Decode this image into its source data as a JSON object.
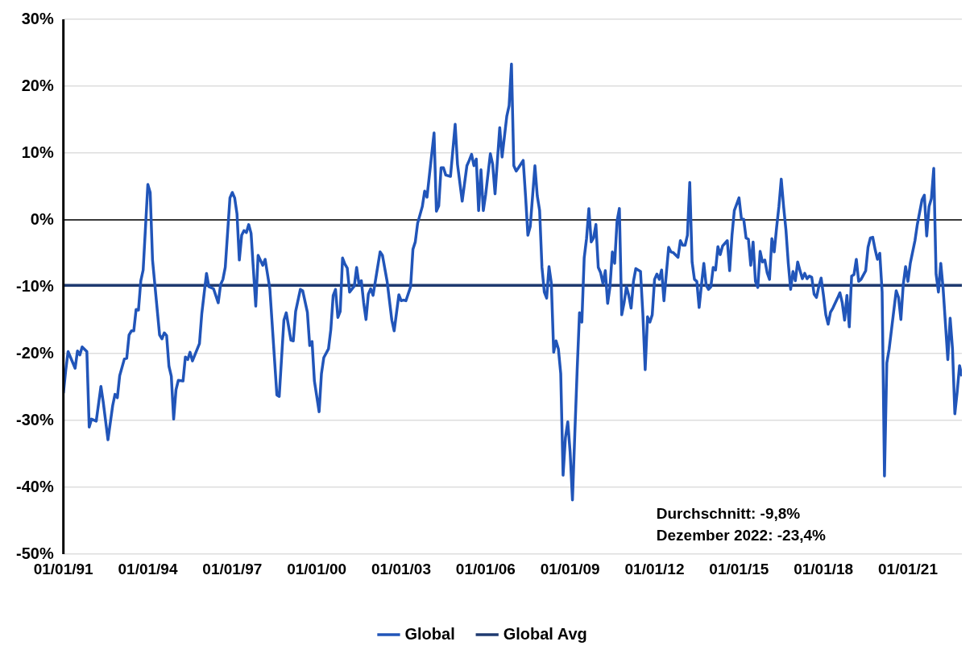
{
  "chart_data": {
    "type": "line",
    "xlim": [
      "1991-01",
      "2022-12"
    ],
    "ylim": [
      -50,
      30
    ],
    "xticks": [
      {
        "value": "1991-01-01",
        "label": "01/01/91"
      },
      {
        "value": "1994-01-01",
        "label": "01/01/94"
      },
      {
        "value": "1997-01-01",
        "label": "01/01/97"
      },
      {
        "value": "2000-01-01",
        "label": "01/01/00"
      },
      {
        "value": "2003-01-01",
        "label": "01/01/03"
      },
      {
        "value": "2006-01-01",
        "label": "01/01/06"
      },
      {
        "value": "2009-01-01",
        "label": "01/01/09"
      },
      {
        "value": "2012-01-01",
        "label": "01/01/12"
      },
      {
        "value": "2015-01-01",
        "label": "01/01/15"
      },
      {
        "value": "2018-01-01",
        "label": "01/01/18"
      },
      {
        "value": "2021-01-01",
        "label": "01/01/21"
      }
    ],
    "yticks": [
      {
        "value": 30,
        "label": "30%"
      },
      {
        "value": 20,
        "label": "20%"
      },
      {
        "value": 10,
        "label": "10%"
      },
      {
        "value": 0,
        "label": "0%"
      },
      {
        "value": -10,
        "label": "-10%"
      },
      {
        "value": -20,
        "label": "-20%"
      },
      {
        "value": -30,
        "label": "-30%"
      },
      {
        "value": -40,
        "label": "-40%"
      },
      {
        "value": -50,
        "label": "-50%"
      }
    ],
    "grid": "y",
    "legend": "bottom",
    "marker": "none",
    "line_style": "solid",
    "ref_lines": [
      {
        "axis": "y",
        "value": 0,
        "color": "#000000"
      }
    ],
    "annotations": [
      "Durchschnitt: -9,8%",
      "Dezember 2022: -23,4%"
    ],
    "series": [
      {
        "name": "Global",
        "type": "line",
        "color": "#2155b9",
        "x": [
          "1991-01",
          "1991-02",
          "1991-03",
          "1991-06",
          "1991-07",
          "1991-08",
          "1991-09",
          "1991-11",
          "1991-12",
          "1992-01",
          "1992-03",
          "1992-05",
          "1992-06",
          "1992-08",
          "1992-10",
          "1992-11",
          "1992-12",
          "1993-01",
          "1993-03",
          "1993-04",
          "1993-05",
          "1993-06",
          "1993-07",
          "1993-08",
          "1993-09",
          "1993-10",
          "1993-11",
          "1994-01",
          "1994-02",
          "1994-03",
          "1994-06",
          "1994-07",
          "1994-08",
          "1994-09",
          "1994-10",
          "1994-11",
          "1994-12",
          "1995-01",
          "1995-02",
          "1995-04",
          "1995-05",
          "1995-06",
          "1995-07",
          "1995-08",
          "1995-11",
          "1995-12",
          "1996-02",
          "1996-03",
          "1996-05",
          "1996-07",
          "1996-08",
          "1996-09",
          "1996-10",
          "1996-12",
          "1997-01",
          "1997-02",
          "1997-03",
          "1997-04",
          "1997-05",
          "1997-06",
          "1997-07",
          "1997-08",
          "1997-09",
          "1997-11",
          "1997-12",
          "1998-02",
          "1998-03",
          "1998-05",
          "1998-08",
          "1998-09",
          "1998-11",
          "1998-12",
          "1999-02",
          "1999-03",
          "1999-04",
          "1999-06",
          "1999-07",
          "1999-09",
          "1999-10",
          "1999-11",
          "1999-12",
          "2000-02",
          "2000-03",
          "2000-04",
          "2000-06",
          "2000-07",
          "2000-08",
          "2000-09",
          "2000-10",
          "2000-11",
          "2000-12",
          "2001-01",
          "2001-02",
          "2001-03",
          "2001-05",
          "2001-06",
          "2001-07",
          "2001-08",
          "2001-09",
          "2001-10",
          "2001-11",
          "2001-12",
          "2002-01",
          "2002-04",
          "2002-05",
          "2002-07",
          "2002-09",
          "2002-10",
          "2002-12",
          "2003-01",
          "2003-02",
          "2003-03",
          "2003-05",
          "2003-06",
          "2003-07",
          "2003-08",
          "2003-10",
          "2003-11",
          "2003-12",
          "2004-03",
          "2004-04",
          "2004-05",
          "2004-06",
          "2004-07",
          "2004-08",
          "2004-10",
          "2004-12",
          "2005-01",
          "2005-03",
          "2005-05",
          "2005-06",
          "2005-07",
          "2005-08",
          "2005-09",
          "2005-10",
          "2005-11",
          "2005-12",
          "2006-01",
          "2006-03",
          "2006-04",
          "2006-05",
          "2006-07",
          "2006-08",
          "2006-10",
          "2006-11",
          "2006-12",
          "2007-01",
          "2007-02",
          "2007-03",
          "2007-05",
          "2007-06",
          "2007-07",
          "2007-08",
          "2007-10",
          "2007-11",
          "2007-12",
          "2008-01",
          "2008-02",
          "2008-03",
          "2008-04",
          "2008-05",
          "2008-06",
          "2008-07",
          "2008-08",
          "2008-09",
          "2008-10",
          "2008-11",
          "2008-12",
          "2009-01",
          "2009-02",
          "2009-03",
          "2009-04",
          "2009-05",
          "2009-06",
          "2009-07",
          "2009-08",
          "2009-09",
          "2009-10",
          "2009-11",
          "2009-12",
          "2010-01",
          "2010-02",
          "2010-03",
          "2010-04",
          "2010-05",
          "2010-06",
          "2010-07",
          "2010-08",
          "2010-09",
          "2010-10",
          "2010-11",
          "2010-12",
          "2011-01",
          "2011-02",
          "2011-03",
          "2011-04",
          "2011-05",
          "2011-07",
          "2011-08",
          "2011-09",
          "2011-10",
          "2011-11",
          "2011-12",
          "2012-01",
          "2012-02",
          "2012-03",
          "2012-04",
          "2012-05",
          "2012-06",
          "2012-07",
          "2012-08",
          "2012-09",
          "2012-11",
          "2012-12",
          "2013-01",
          "2013-02",
          "2013-03",
          "2013-04",
          "2013-05",
          "2013-06",
          "2013-07",
          "2013-08",
          "2013-09",
          "2013-10",
          "2013-11",
          "2013-12",
          "2014-01",
          "2014-02",
          "2014-03",
          "2014-04",
          "2014-05",
          "2014-06",
          "2014-08",
          "2014-09",
          "2014-10",
          "2014-11",
          "2015-01",
          "2015-02",
          "2015-03",
          "2015-04",
          "2015-05",
          "2015-06",
          "2015-07",
          "2015-08",
          "2015-09",
          "2015-10",
          "2015-11",
          "2015-12",
          "2016-01",
          "2016-02",
          "2016-03",
          "2016-04",
          "2016-05",
          "2016-06",
          "2016-07",
          "2016-08",
          "2016-09",
          "2016-10",
          "2016-11",
          "2016-12",
          "2017-01",
          "2017-02",
          "2017-03",
          "2017-04",
          "2017-05",
          "2017-06",
          "2017-07",
          "2017-08",
          "2017-09",
          "2017-10",
          "2017-11",
          "2017-12",
          "2018-01",
          "2018-02",
          "2018-03",
          "2018-04",
          "2018-05",
          "2018-07",
          "2018-08",
          "2018-09",
          "2018-10",
          "2018-11",
          "2018-12",
          "2019-01",
          "2019-02",
          "2019-03",
          "2019-04",
          "2019-05",
          "2019-07",
          "2019-08",
          "2019-09",
          "2019-10",
          "2019-11",
          "2019-12",
          "2020-01",
          "2020-02",
          "2020-03",
          "2020-04",
          "2020-05",
          "2020-06",
          "2020-08",
          "2020-09",
          "2020-10",
          "2020-11",
          "2020-12",
          "2021-01",
          "2021-02",
          "2021-04",
          "2021-05",
          "2021-07",
          "2021-08",
          "2021-09",
          "2021-10",
          "2021-11",
          "2021-12",
          "2022-01",
          "2022-02",
          "2022-03",
          "2022-04",
          "2022-05",
          "2022-06",
          "2022-07",
          "2022-08",
          "2022-09",
          "2022-10",
          "2022-11",
          "2022-12"
        ],
        "values": [
          -25.9,
          -22.5,
          -19.7,
          -22.2,
          -19.6,
          -20.2,
          -19.0,
          -19.7,
          -31.0,
          -29.8,
          -30.1,
          -24.9,
          -27.3,
          -32.9,
          -27.8,
          -26.1,
          -26.6,
          -23.3,
          -20.8,
          -20.7,
          -17.2,
          -16.6,
          -16.6,
          -13.4,
          -13.5,
          -9.1,
          -7.5,
          5.3,
          4.1,
          -6.0,
          -17.2,
          -17.8,
          -16.9,
          -17.3,
          -21.9,
          -23.4,
          -29.8,
          -25.4,
          -24.0,
          -24.1,
          -20.5,
          -20.9,
          -19.8,
          -21.1,
          -18.5,
          -14.0,
          -8.0,
          -10.0,
          -10.3,
          -12.4,
          -9.7,
          -8.9,
          -7.1,
          3.3,
          4.1,
          3.3,
          0.9,
          -6.0,
          -2.3,
          -1.6,
          -1.9,
          -0.7,
          -2.0,
          -12.9,
          -5.3,
          -6.8,
          -5.9,
          -10.3,
          -26.2,
          -26.4,
          -15.0,
          -13.9,
          -18.0,
          -18.1,
          -13.7,
          -10.4,
          -10.6,
          -13.8,
          -18.8,
          -18.2,
          -24.1,
          -28.7,
          -23.0,
          -20.6,
          -19.3,
          -16.4,
          -11.3,
          -10.4,
          -14.6,
          -13.7,
          -5.7,
          -6.6,
          -7.2,
          -10.8,
          -9.9,
          -7.1,
          -9.6,
          -9.1,
          -12.4,
          -14.9,
          -11.1,
          -10.3,
          -11.3,
          -4.8,
          -5.3,
          -9.2,
          -15.0,
          -16.6,
          -11.2,
          -12.1,
          -12.0,
          -12.1,
          -10.0,
          -4.4,
          -3.3,
          -0.5,
          2.0,
          4.3,
          3.4,
          13.0,
          1.3,
          2.1,
          7.8,
          7.8,
          6.7,
          6.5,
          14.3,
          8.3,
          2.8,
          8.1,
          8.9,
          9.8,
          8.1,
          9.1,
          1.4,
          7.5,
          1.4,
          3.8,
          9.9,
          8.3,
          3.9,
          13.8,
          9.4,
          15.5,
          17.1,
          23.3,
          8.1,
          7.3,
          7.8,
          8.9,
          3.6,
          -2.3,
          -1.0,
          8.1,
          3.6,
          1.4,
          -7.1,
          -10.8,
          -11.7,
          -7.0,
          -9.5,
          -19.8,
          -18.1,
          -19.3,
          -23.0,
          -38.2,
          -32.6,
          -30.2,
          -34.7,
          -41.9,
          -32.0,
          -22.5,
          -13.9,
          -15.3,
          -5.7,
          -2.8,
          1.7,
          -3.3,
          -2.7,
          -0.7,
          -7.1,
          -7.9,
          -9.5,
          -7.6,
          -12.5,
          -10.0,
          -4.8,
          -6.5,
          -0.2,
          1.7,
          -14.2,
          -12.4,
          -10.0,
          -11.3,
          -13.2,
          -9.2,
          -7.3,
          -7.7,
          -14.0,
          -22.4,
          -14.5,
          -15.3,
          -14.2,
          -8.9,
          -8.1,
          -8.9,
          -7.5,
          -12.1,
          -8.1,
          -4.1,
          -4.8,
          -4.9,
          -5.6,
          -3.1,
          -3.8,
          -3.8,
          -2.3,
          5.6,
          -6.3,
          -8.9,
          -9.2,
          -13.1,
          -9.7,
          -6.5,
          -9.8,
          -10.4,
          -10.0,
          -7.1,
          -7.5,
          -4.0,
          -5.2,
          -3.9,
          -3.1,
          -7.6,
          -2.3,
          1.4,
          3.3,
          0.2,
          0.1,
          -2.7,
          -2.9,
          -6.8,
          -3.3,
          -9.2,
          -10.1,
          -4.7,
          -6.3,
          -6.0,
          -7.9,
          -8.9,
          -2.8,
          -4.8,
          -1.2,
          2.0,
          6.1,
          2.0,
          -1.5,
          -6.5,
          -10.4,
          -7.7,
          -9.1,
          -6.3,
          -7.6,
          -8.8,
          -8.0,
          -8.8,
          -8.4,
          -8.6,
          -11.1,
          -11.6,
          -10.0,
          -8.7,
          -11.3,
          -14.2,
          -15.6,
          -13.8,
          -13.2,
          -11.7,
          -10.9,
          -12.4,
          -15.0,
          -11.3,
          -16.0,
          -8.4,
          -8.2,
          -5.9,
          -9.2,
          -8.9,
          -7.6,
          -4.1,
          -2.7,
          -2.6,
          -4.4,
          -5.9,
          -5.0,
          -10.8,
          -38.3,
          -21.4,
          -19.3,
          -16.4,
          -10.6,
          -11.6,
          -14.9,
          -9.7,
          -7.0,
          -9.2,
          -6.5,
          -3.1,
          -0.7,
          3.0,
          3.7,
          -2.4,
          2.0,
          3.2,
          7.7,
          -8.1,
          -10.8,
          -6.5,
          -10.3,
          -15.6,
          -20.9,
          -14.7,
          -19.3,
          -29.0,
          -25.7,
          -21.8,
          -23.4
        ]
      },
      {
        "name": "Global Avg",
        "type": "line",
        "color": "#1f3a70",
        "x": [
          "1991-01",
          "2022-12"
        ],
        "values": [
          -9.8,
          -9.8
        ]
      }
    ]
  }
}
